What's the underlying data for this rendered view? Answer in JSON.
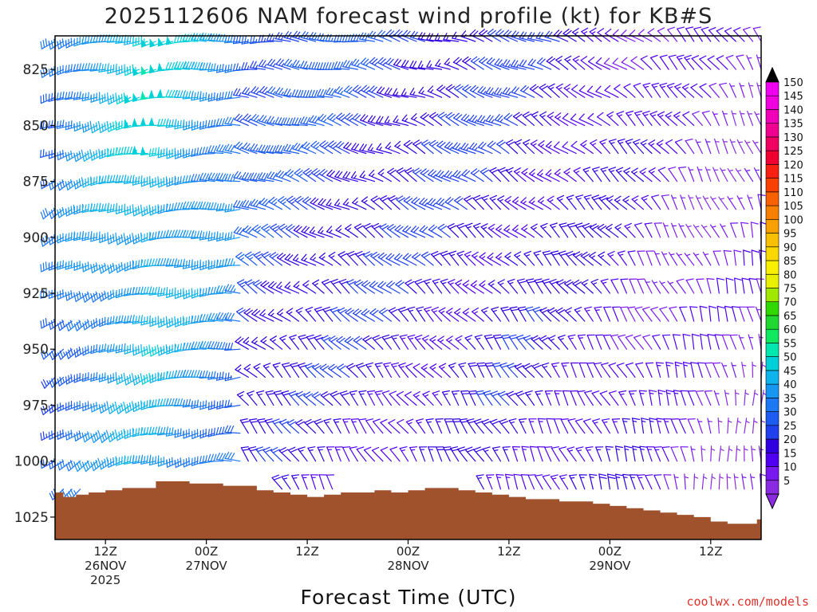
{
  "page": {
    "title": "2025112606 NAM forecast wind profile (kt) for KB#S",
    "credit": "coolwx.com/models"
  },
  "chart_data": {
    "type": "wind-barb-time-height",
    "title": "2025112606 NAM forecast wind profile (kt) for KB#S",
    "xlabel": "Forecast Time (UTC)",
    "ylabel": "",
    "units": "kt",
    "y_axis": {
      "reversed": true,
      "range_mb": [
        810,
        1035
      ],
      "ticks": [
        825,
        850,
        875,
        900,
        925,
        950,
        975,
        1000,
        1025
      ]
    },
    "x_axis": {
      "range_hours": [
        0,
        84
      ],
      "ticks": [
        {
          "hour": 6,
          "label": "12Z",
          "sub": "26NOV",
          "sub2": "2025"
        },
        {
          "hour": 18,
          "label": "00Z",
          "sub": "27NOV",
          "sub2": ""
        },
        {
          "hour": 30,
          "label": "12Z",
          "sub": "",
          "sub2": ""
        },
        {
          "hour": 42,
          "label": "00Z",
          "sub": "28NOV",
          "sub2": ""
        },
        {
          "hour": 54,
          "label": "12Z",
          "sub": "",
          "sub2": ""
        },
        {
          "hour": 66,
          "label": "00Z",
          "sub": "29NOV",
          "sub2": ""
        },
        {
          "hour": 78,
          "label": "12Z",
          "sub": "",
          "sub2": ""
        }
      ]
    },
    "colorbar": {
      "levels": [
        5,
        10,
        15,
        20,
        25,
        30,
        35,
        40,
        45,
        50,
        55,
        60,
        65,
        70,
        75,
        80,
        85,
        90,
        95,
        100,
        105,
        110,
        115,
        120,
        125,
        130,
        135,
        140,
        145,
        150
      ],
      "colors": [
        "#8a2be2",
        "#7a18f0",
        "#5000f0",
        "#3000e0",
        "#2040ee",
        "#1c5cf0",
        "#1d78f4",
        "#1796f2",
        "#10b4ec",
        "#00d0d8",
        "#00e8b0",
        "#10e860",
        "#20d830",
        "#30d800",
        "#a0e800",
        "#e8f000",
        "#f8f000",
        "#f8d800",
        "#f8c000",
        "#f8a000",
        "#f88000",
        "#f86000",
        "#f84000",
        "#f82010",
        "#f00030",
        "#f00060",
        "#f00090",
        "#f000b8",
        "#f000e0",
        "#f000f0"
      ]
    },
    "terrain": {
      "color": "#a0522d",
      "surface_pressure_mb": [
        {
          "hour": 0,
          "p": 1014
        },
        {
          "hour": 1,
          "p": 1016
        },
        {
          "hour": 2.5,
          "p": 1015
        },
        {
          "hour": 4,
          "p": 1014
        },
        {
          "hour": 6,
          "p": 1013
        },
        {
          "hour": 8,
          "p": 1012
        },
        {
          "hour": 10,
          "p": 1012
        },
        {
          "hour": 12,
          "p": 1009
        },
        {
          "hour": 14,
          "p": 1009
        },
        {
          "hour": 16,
          "p": 1010
        },
        {
          "hour": 18,
          "p": 1010
        },
        {
          "hour": 20,
          "p": 1011
        },
        {
          "hour": 22,
          "p": 1011
        },
        {
          "hour": 24,
          "p": 1013
        },
        {
          "hour": 26,
          "p": 1014
        },
        {
          "hour": 28,
          "p": 1015
        },
        {
          "hour": 30,
          "p": 1016
        },
        {
          "hour": 32,
          "p": 1015
        },
        {
          "hour": 34,
          "p": 1014
        },
        {
          "hour": 36,
          "p": 1014
        },
        {
          "hour": 38,
          "p": 1013
        },
        {
          "hour": 40,
          "p": 1014
        },
        {
          "hour": 42,
          "p": 1013
        },
        {
          "hour": 44,
          "p": 1012
        },
        {
          "hour": 46,
          "p": 1012
        },
        {
          "hour": 48,
          "p": 1013
        },
        {
          "hour": 50,
          "p": 1014
        },
        {
          "hour": 52,
          "p": 1015
        },
        {
          "hour": 54,
          "p": 1016
        },
        {
          "hour": 56,
          "p": 1017
        },
        {
          "hour": 58,
          "p": 1017
        },
        {
          "hour": 60,
          "p": 1018
        },
        {
          "hour": 62,
          "p": 1018
        },
        {
          "hour": 64,
          "p": 1019
        },
        {
          "hour": 66,
          "p": 1020
        },
        {
          "hour": 68,
          "p": 1021
        },
        {
          "hour": 70,
          "p": 1022
        },
        {
          "hour": 72,
          "p": 1023
        },
        {
          "hour": 74,
          "p": 1024
        },
        {
          "hour": 76,
          "p": 1025
        },
        {
          "hour": 78,
          "p": 1027
        },
        {
          "hour": 80,
          "p": 1028
        },
        {
          "hour": 82,
          "p": 1028
        },
        {
          "hour": 83.5,
          "p": 1026
        },
        {
          "hour": 84,
          "p": 1026
        }
      ]
    },
    "wind_field": {
      "time_step_hours": 1,
      "pressure_levels_mb": [
        812.5,
        825,
        837.5,
        850,
        862.5,
        875,
        887.5,
        900,
        912.5,
        925,
        937.5,
        950,
        962.5,
        975,
        987.5,
        1000,
        1012.5
      ],
      "keyframes": [
        {
          "hour": 0,
          "dir_top": 250,
          "dir_bottom": 230,
          "spd_top": 32,
          "spd_bottom": 26
        },
        {
          "hour": 6,
          "dir_top": 255,
          "dir_bottom": 240,
          "spd_top": 42,
          "spd_bottom": 34
        },
        {
          "hour": 12,
          "dir_top": 260,
          "dir_bottom": 250,
          "spd_top": 48,
          "spd_bottom": 40
        },
        {
          "hour": 18,
          "dir_top": 265,
          "dir_bottom": 260,
          "spd_top": 40,
          "spd_bottom": 34
        },
        {
          "hour": 22,
          "dir_top": 270,
          "dir_bottom": 268,
          "spd_top": 35,
          "spd_bottom": 30
        },
        {
          "hour": 23,
          "dir_top": 272,
          "dir_bottom": 325,
          "spd_top": 30,
          "spd_bottom": 17
        },
        {
          "hour": 30,
          "dir_top": 275,
          "dir_bottom": 330,
          "spd_top": 27,
          "spd_bottom": 14
        },
        {
          "hour": 42,
          "dir_top": 285,
          "dir_bottom": 330,
          "spd_top": 22,
          "spd_bottom": 14
        },
        {
          "hour": 54,
          "dir_top": 290,
          "dir_bottom": 335,
          "spd_top": 20,
          "spd_bottom": 16
        },
        {
          "hour": 66,
          "dir_top": 300,
          "dir_bottom": 340,
          "spd_top": 14,
          "spd_bottom": 14
        },
        {
          "hour": 78,
          "dir_top": 320,
          "dir_bottom": 355,
          "spd_top": 8,
          "spd_bottom": 7
        },
        {
          "hour": 84,
          "dir_top": 330,
          "dir_bottom": 5,
          "spd_top": 7,
          "spd_bottom": 6
        }
      ]
    }
  }
}
